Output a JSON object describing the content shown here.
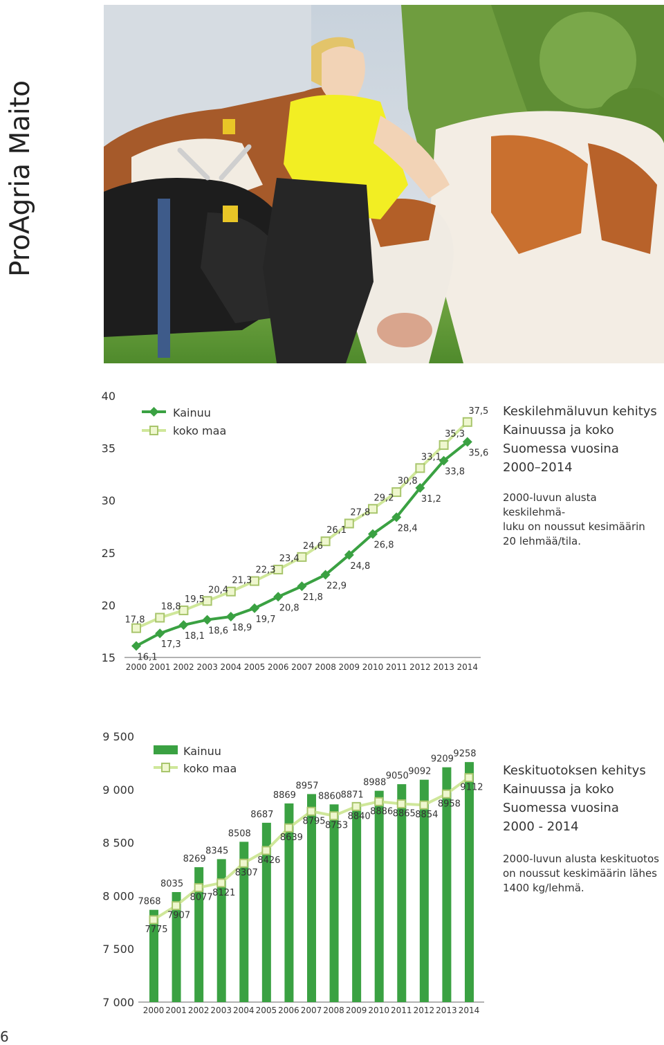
{
  "brand": "ProAgria Maito",
  "page_number": "6",
  "colors": {
    "kainuu": "#3aa142",
    "koko_maa": "#cfe79a",
    "koko_maa_border": "#a8c56c",
    "text": "#333333"
  },
  "photo": {
    "subject": "woman-with-cows-photo"
  },
  "chart1_desc": {
    "title": "Keskilehmäluvun kehitys\nKainuussa ja koko\nSuomessa vuosina\n2000–2014",
    "body": "2000-luvun alusta keskilehmä-\nluku on noussut kesimäärin\n20 lehmää/tila."
  },
  "chart2_desc": {
    "title": "Keskituotoksen kehitys\nKainuussa ja koko\nSuomessa vuosina\n2000 - 2014",
    "body": "2000-luvun alusta keskituotos\non noussut keskimäärin lähes\n1400 kg/lehmä."
  },
  "chart_data": [
    {
      "type": "line",
      "title": "Keskilehmäluvun kehitys Kainuussa ja koko Suomessa vuosina 2000–2014",
      "x": [
        "2000",
        "2001",
        "2002",
        "2003",
        "2004",
        "2005",
        "2006",
        "2007",
        "2008",
        "2009",
        "2010",
        "2011",
        "2012",
        "2013",
        "2014"
      ],
      "ylim": [
        15,
        40
      ],
      "yticks": [
        "15",
        "20",
        "25",
        "30",
        "35",
        "40"
      ],
      "grid": false,
      "legend": "top-left",
      "series": [
        {
          "name": "Kainuu",
          "values": [
            16.1,
            17.3,
            18.1,
            18.6,
            18.9,
            19.7,
            20.8,
            21.8,
            22.9,
            24.8,
            26.8,
            28.4,
            31.2,
            33.8,
            35.6
          ],
          "labels": [
            "16,1",
            "17,3",
            "18,1",
            "18,6",
            "18,9",
            "19,7",
            "20,8",
            "21,8",
            "22,9",
            "24,8",
            "26,8",
            "28,4",
            "31,2",
            "33,8",
            "35,6"
          ]
        },
        {
          "name": "koko maa",
          "values": [
            17.8,
            18.8,
            19.5,
            20.4,
            21.3,
            22.3,
            23.4,
            24.6,
            26.1,
            27.8,
            29.2,
            30.8,
            33.1,
            35.3,
            37.5
          ],
          "labels": [
            "17,8",
            "18,8",
            "19,5",
            "20,4",
            "21,3",
            "22,3",
            "23,4",
            "24,6",
            "26,1",
            "27,8",
            "29,2",
            "30,8",
            "33,1",
            "35,3",
            "37,5"
          ]
        }
      ]
    },
    {
      "type": "bar",
      "title": "Keskituotoksen kehitys Kainuussa ja koko Suomessa vuosina 2000 - 2014",
      "categories": [
        "2000",
        "2001",
        "2002",
        "2003",
        "2004",
        "2005",
        "2006",
        "2007",
        "2008",
        "2009",
        "2010",
        "2011",
        "2012",
        "2013",
        "2014"
      ],
      "ylim": [
        7000,
        9500
      ],
      "yticks": [
        "7 000",
        "7 500",
        "8 000",
        "8 500",
        "9 000",
        "9 500"
      ],
      "grid": false,
      "legend": "top-left",
      "series": [
        {
          "name": "Kainuu",
          "kind": "bar",
          "values": [
            7868,
            8035,
            8269,
            8345,
            8508,
            8687,
            8869,
            8957,
            8860,
            8871,
            8988,
            9050,
            9092,
            9209,
            9258
          ]
        },
        {
          "name": "koko maa",
          "kind": "line",
          "values": [
            7775,
            7907,
            8077,
            8121,
            8307,
            8426,
            8639,
            8795,
            8753,
            8840,
            8886,
            8865,
            8854,
            8958,
            9112
          ]
        }
      ]
    }
  ]
}
